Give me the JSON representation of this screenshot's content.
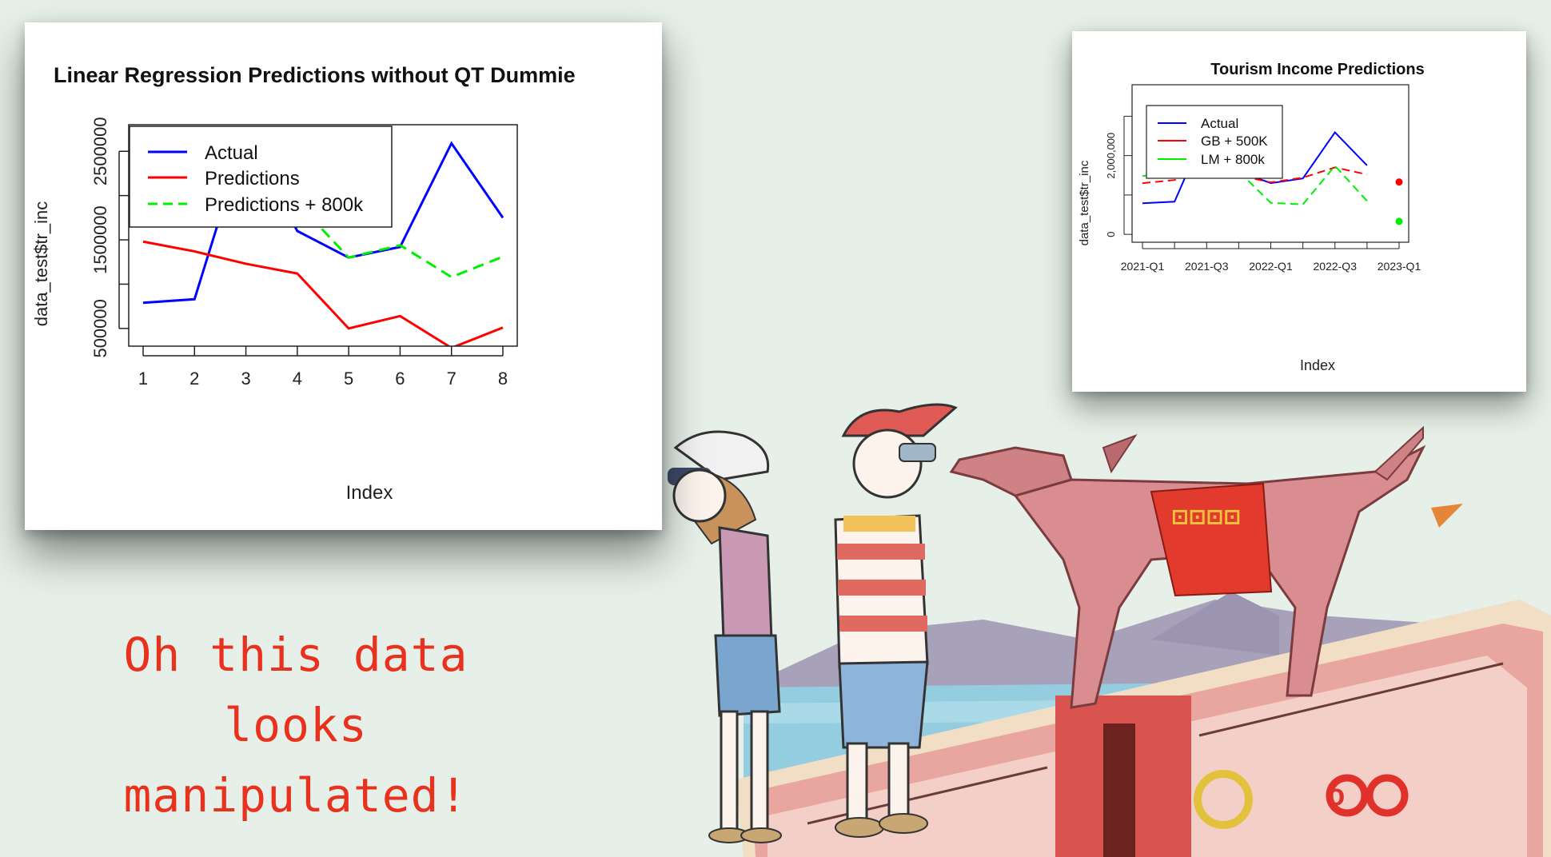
{
  "charts": {
    "left": {
      "title": "Linear Regression Predictions without QT Dummie",
      "xlabel": "Index",
      "ylabel": "data_test$tr_inc",
      "legend": [
        "Actual",
        "Predictions",
        "Predictions + 800k"
      ]
    },
    "right": {
      "title": "Tourism Income Predictions",
      "xlabel": "Index",
      "ylabel": "data_test$tr_inc",
      "legend": [
        "Actual",
        "GB + 500K",
        "LM + 800k"
      ]
    }
  },
  "chart_data": [
    {
      "type": "line",
      "title": "Linear Regression Predictions without QT Dummie",
      "xlabel": "Index",
      "ylabel": "data_test$tr_inc",
      "x": [
        1,
        2,
        3,
        4,
        5,
        6,
        7,
        8
      ],
      "xlim": [
        1,
        8
      ],
      "ylim": [
        300000,
        2800000
      ],
      "y_ticks": [
        "500000",
        "1500000",
        "2500000"
      ],
      "legend_position": "top-left",
      "grid": false,
      "series": [
        {
          "name": "Actual",
          "color": "#0000ff",
          "dash": "solid",
          "values": [
            790000,
            830000,
            2700000,
            1600000,
            1300000,
            1420000,
            2590000,
            1750000
          ]
        },
        {
          "name": "Predictions",
          "color": "#ff0000",
          "dash": "solid",
          "values": [
            1480000,
            1370000,
            1230000,
            1120000,
            500000,
            640000,
            280000,
            510000
          ]
        },
        {
          "name": "Predictions + 800k",
          "color": "#00ee00",
          "dash": "dashed",
          "values": [
            2280000,
            2170000,
            2030000,
            1920000,
            1300000,
            1440000,
            1080000,
            1310000
          ]
        }
      ]
    },
    {
      "type": "line",
      "title": "Tourism Income Predictions",
      "xlabel": "Index",
      "ylabel": "data_test$tr_inc",
      "x": [
        "2021-Q1",
        "2021-Q2",
        "2021-Q3",
        "2021-Q4",
        "2022-Q1",
        "2022-Q2",
        "2022-Q3",
        "2022-Q4",
        "2023-Q1"
      ],
      "x_tick_labels": [
        "2021-Q1",
        "2021-Q3",
        "2022-Q1",
        "2022-Q3",
        "2023-Q1"
      ],
      "y_tick_labels": [
        "0",
        "2,000,000"
      ],
      "ylim": [
        -200000,
        3800000
      ],
      "legend_position": "top-left",
      "grid": false,
      "series": [
        {
          "name": "Actual",
          "color": "#0000ff",
          "dash": "solid",
          "values": [
            790000,
            830000,
            2700000,
            1600000,
            1300000,
            1420000,
            2590000,
            1750000,
            null
          ]
        },
        {
          "name": "GB + 500K",
          "color": "#ff0000",
          "dash": "dashed",
          "values": [
            1300000,
            1380000,
            1650000,
            1500000,
            1320000,
            1440000,
            1700000,
            1520000,
            1330000
          ]
        },
        {
          "name": "LM + 800k",
          "color": "#00ee00",
          "dash": "dashed",
          "values": [
            1480000,
            1600000,
            2700000,
            1600000,
            800000,
            760000,
            1740000,
            850000,
            330000
          ]
        }
      ],
      "points_at_2023_Q1": [
        {
          "series": "GB + 500K",
          "value": 1330000
        },
        {
          "series": "LM + 800k",
          "value": 330000
        }
      ]
    }
  ],
  "caption": {
    "line1": "Oh this data looks",
    "line2": "manipulated!"
  },
  "colors": {
    "background": "#e6efe8",
    "caption": "#e8321e",
    "actual": "#0000ff",
    "predictions": "#ff0000",
    "plus800k": "#00ee00"
  }
}
